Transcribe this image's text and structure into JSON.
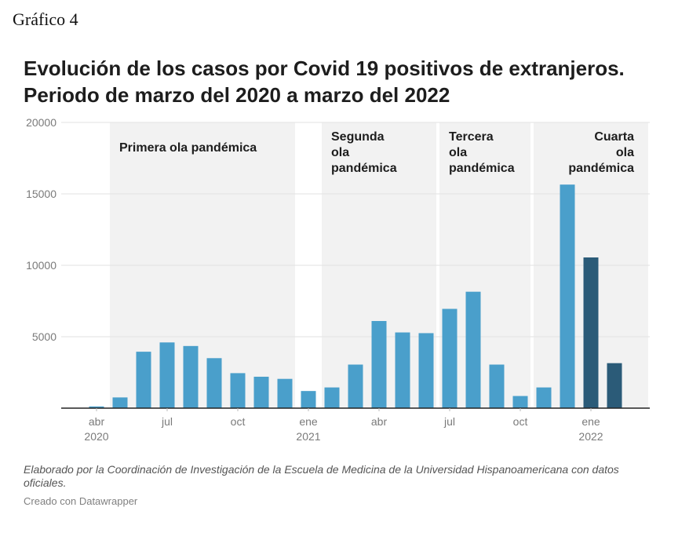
{
  "figure_label": "Gráfico 4",
  "title_lines": [
    "Evolución de los casos por Covid 19 positivos de extranjeros.",
    "Periodo de marzo del 2020 a marzo del 2022"
  ],
  "footnote": "Elaborado por la Coordinación de Investigación de la Escuela de Medicina de la Universidad Hispanoamericana con datos oficiales.",
  "credit": "Creado con Datawrapper",
  "colors": {
    "bar": "#4a9fcb",
    "bar_highlight": "#2b5b78",
    "band": "#f2f2f2",
    "grid": "#e2e2e2",
    "axis": "#222222"
  },
  "chart_data": {
    "type": "bar",
    "categories": [
      "2020-03",
      "2020-04",
      "2020-05",
      "2020-06",
      "2020-07",
      "2020-08",
      "2020-09",
      "2020-10",
      "2020-11",
      "2020-12",
      "2021-01",
      "2021-02",
      "2021-03",
      "2021-04",
      "2021-05",
      "2021-06",
      "2021-07",
      "2021-08",
      "2021-09",
      "2021-10",
      "2021-11",
      "2021-12",
      "2022-01",
      "2022-02",
      "2022-03"
    ],
    "values": [
      0,
      120,
      750,
      3950,
      4600,
      4350,
      3500,
      2450,
      2200,
      2050,
      1200,
      1450,
      3050,
      6100,
      5300,
      5250,
      6950,
      8150,
      3050,
      850,
      1450,
      15650,
      10550,
      3150,
      0
    ],
    "highlight_categories": [
      "2022-01",
      "2022-02"
    ],
    "ylim": [
      0,
      20000
    ],
    "yticks": [
      0,
      5000,
      10000,
      15000,
      20000
    ],
    "ytick_labels": [
      "",
      "5000",
      "10000",
      "15000",
      "20000"
    ],
    "xticks": [
      {
        "category": "2020-04",
        "label": "abr",
        "year": "2020"
      },
      {
        "category": "2020-07",
        "label": "jul",
        "year": ""
      },
      {
        "category": "2020-10",
        "label": "oct",
        "year": ""
      },
      {
        "category": "2021-01",
        "label": "ene",
        "year": "2021"
      },
      {
        "category": "2021-04",
        "label": "abr",
        "year": ""
      },
      {
        "category": "2021-07",
        "label": "jul",
        "year": ""
      },
      {
        "category": "2021-10",
        "label": "oct",
        "year": ""
      },
      {
        "category": "2022-01",
        "label": "ene",
        "year": "2022"
      }
    ],
    "bands": [
      {
        "name": "primera-ola",
        "start": "2020-05",
        "end": "2020-12",
        "label_lines": [
          "Primera ola pandémica"
        ],
        "anchor": "start"
      },
      {
        "name": "segunda-ola",
        "start": "2021-02",
        "end": "2021-06",
        "label_lines": [
          "Segunda",
          "ola",
          "pandémica"
        ],
        "anchor": "start"
      },
      {
        "name": "tercera-ola",
        "start": "2021-07",
        "end": "2021-10",
        "label_lines": [
          "Tercera",
          "ola",
          "pandémica"
        ],
        "anchor": "start"
      },
      {
        "name": "cuarta-ola",
        "start": "2021-11",
        "end": "2022-03",
        "label_lines": [
          "Cuarta",
          "ola",
          "pandémica"
        ],
        "anchor": "end"
      }
    ],
    "grid": true,
    "legend": "none"
  }
}
